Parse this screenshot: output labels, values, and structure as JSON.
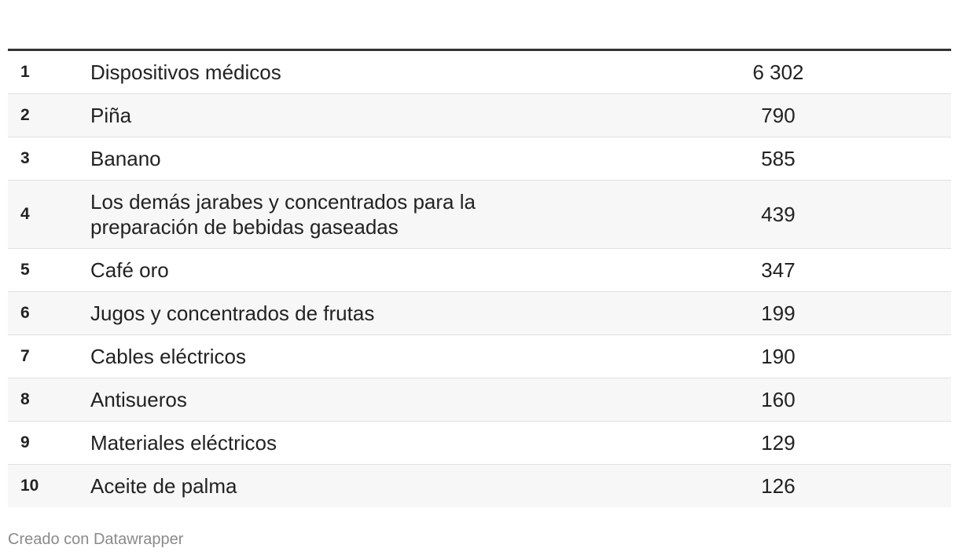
{
  "chart_data": {
    "type": "table",
    "rows": [
      {
        "rank": "1",
        "name": "Dispositivos médicos",
        "value": "6 302"
      },
      {
        "rank": "2",
        "name": "Piña",
        "value": "790"
      },
      {
        "rank": "3",
        "name": "Banano",
        "value": "585"
      },
      {
        "rank": "4",
        "name": "Los demás jarabes y concentrados para la preparación de bebidas gaseadas",
        "value": "439"
      },
      {
        "rank": "5",
        "name": "Café oro",
        "value": "347"
      },
      {
        "rank": "6",
        "name": "Jugos y concentrados de frutas",
        "value": "199"
      },
      {
        "rank": "7",
        "name": "Cables eléctricos",
        "value": "190"
      },
      {
        "rank": "8",
        "name": "Antisueros",
        "value": "160"
      },
      {
        "rank": "9",
        "name": "Materiales eléctricos",
        "value": "129"
      },
      {
        "rank": "10",
        "name": "Aceite de palma",
        "value": "126"
      }
    ]
  },
  "footer": {
    "credit": "Creado con Datawrapper"
  }
}
